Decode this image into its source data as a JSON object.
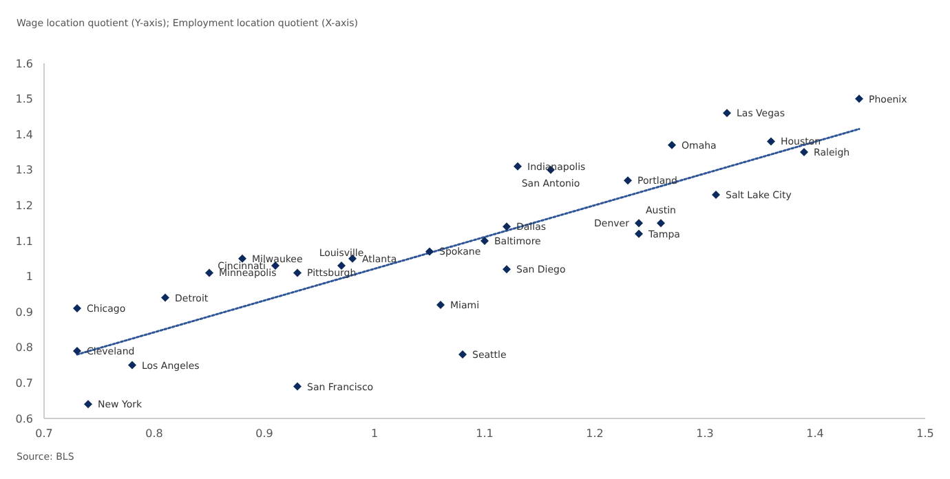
{
  "chart_data": {
    "type": "scatter",
    "title": "Wage location quotient (Y-axis); Employment location quotient (X-axis)",
    "series": [
      {
        "color": "#0d2a5e",
        "marker": "diamond",
        "x": [
          1.44,
          1.32,
          1.27,
          1.36,
          1.39,
          1.13,
          1.16,
          1.23,
          1.31,
          1.24,
          1.26,
          1.24,
          1.12,
          1.1,
          1.12,
          1.05,
          1.06,
          1.08,
          0.98,
          0.97,
          0.93,
          0.91,
          0.88,
          0.85,
          0.81,
          0.73,
          0.73,
          0.78,
          0.74,
          0.93
        ],
        "values": [
          1.5,
          1.46,
          1.37,
          1.38,
          1.35,
          1.31,
          1.3,
          1.27,
          1.23,
          1.15,
          1.15,
          1.12,
          1.14,
          1.1,
          1.02,
          1.07,
          0.92,
          0.78,
          1.05,
          1.03,
          1.01,
          1.03,
          1.05,
          1.01,
          0.94,
          0.91,
          0.79,
          0.75,
          0.64,
          0.69
        ]
      },
      {
        "type": "line",
        "color": "#2e5597",
        "line_style": "dotted",
        "marker": "none",
        "x": [
          0.73,
          1.44
        ],
        "values": [
          0.78,
          1.415
        ]
      }
    ],
    "annotations": [
      {
        "text": "Phoenix",
        "x": 1.44,
        "y": 1.5
      },
      {
        "text": "Las Vegas",
        "x": 1.32,
        "y": 1.46
      },
      {
        "text": "Omaha",
        "x": 1.27,
        "y": 1.37
      },
      {
        "text": "Houston",
        "x": 1.36,
        "y": 1.38
      },
      {
        "text": "Raleigh",
        "x": 1.39,
        "y": 1.35
      },
      {
        "text": "Indianapolis",
        "x": 1.13,
        "y": 1.31
      },
      {
        "text": "San Antonio",
        "x": 1.16,
        "y": 1.3
      },
      {
        "text": "Portland",
        "x": 1.23,
        "y": 1.27
      },
      {
        "text": "Salt Lake City",
        "x": 1.31,
        "y": 1.23
      },
      {
        "text": "Denver",
        "x": 1.24,
        "y": 1.15
      },
      {
        "text": "Austin",
        "x": 1.26,
        "y": 1.15
      },
      {
        "text": "Tampa",
        "x": 1.24,
        "y": 1.12
      },
      {
        "text": "Dallas",
        "x": 1.12,
        "y": 1.14
      },
      {
        "text": "Baltimore",
        "x": 1.1,
        "y": 1.1
      },
      {
        "text": "San Diego",
        "x": 1.12,
        "y": 1.02
      },
      {
        "text": "Spokane",
        "x": 1.05,
        "y": 1.07
      },
      {
        "text": "Miami",
        "x": 1.06,
        "y": 0.92
      },
      {
        "text": "Seattle",
        "x": 1.08,
        "y": 0.78
      },
      {
        "text": "Atlanta",
        "x": 0.98,
        "y": 1.05
      },
      {
        "text": "Louisville",
        "x": 0.97,
        "y": 1.03
      },
      {
        "text": "Pittsburgh",
        "x": 0.93,
        "y": 1.01
      },
      {
        "text": "Cincinnati",
        "x": 0.91,
        "y": 1.03
      },
      {
        "text": "Milwaukee",
        "x": 0.88,
        "y": 1.05
      },
      {
        "text": "Minneapolis",
        "x": 0.85,
        "y": 1.01
      },
      {
        "text": "Detroit",
        "x": 0.81,
        "y": 0.94
      },
      {
        "text": "Chicago",
        "x": 0.73,
        "y": 0.91
      },
      {
        "text": "Cleveland",
        "x": 0.73,
        "y": 0.79
      },
      {
        "text": "Los Angeles",
        "x": 0.78,
        "y": 0.75
      },
      {
        "text": "New York",
        "x": 0.74,
        "y": 0.64
      },
      {
        "text": "San Francisco",
        "x": 0.93,
        "y": 0.69
      },
      "Source: BLS"
    ],
    "xlim": [
      0.7,
      1.5
    ],
    "xticks": [
      0.7,
      0.8,
      0.9,
      1,
      1.1,
      1.2,
      1.3,
      1.4,
      1.5
    ],
    "ylim": [
      0.6,
      1.6
    ],
    "yticks": [
      0.6,
      0.7,
      0.8,
      0.9,
      1,
      1.1,
      1.2,
      1.3,
      1.4,
      1.5,
      1.6
    ],
    "grid": false
  }
}
